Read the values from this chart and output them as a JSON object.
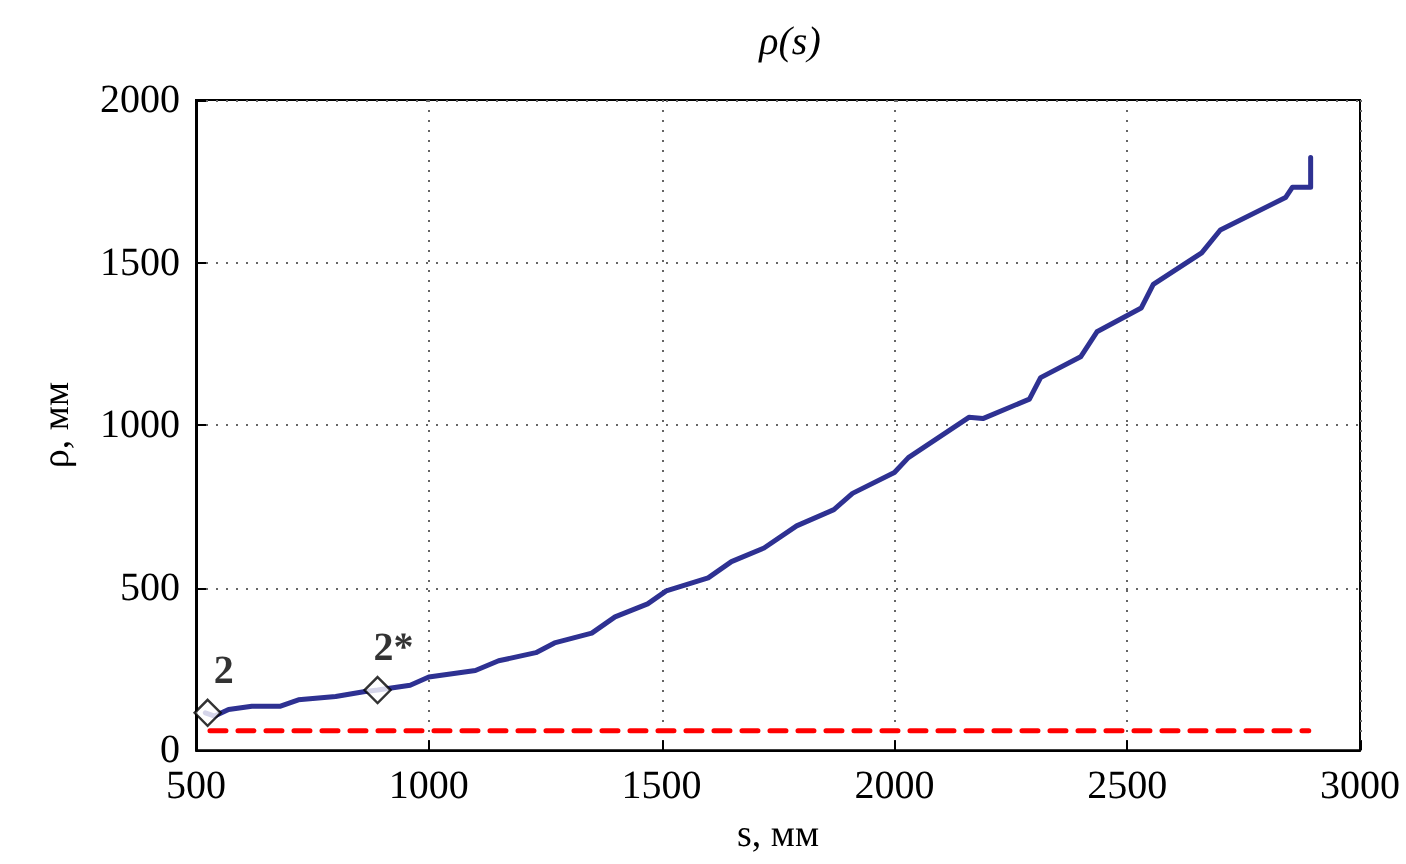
{
  "chart_data": {
    "type": "line",
    "title": "ρ(s)",
    "xlabel": "s, мм",
    "ylabel": "ρ, мм",
    "xlim": [
      500,
      3000
    ],
    "xticks": [
      500,
      1000,
      1500,
      2000,
      2500,
      3000
    ],
    "ylim": [
      0,
      2000
    ],
    "yticks": [
      0,
      500,
      1000,
      1500,
      2000
    ],
    "grid": true,
    "marker": "none",
    "series": [
      {
        "color": "#2e3192",
        "line_style": "solid",
        "x": [
          520,
          540,
          570,
          620,
          680,
          720,
          800,
          860,
          890,
          960,
          1000,
          1100,
          1150,
          1230,
          1270,
          1350,
          1400,
          1470,
          1510,
          1600,
          1650,
          1720,
          1790,
          1870,
          1910,
          2000,
          2030,
          2160,
          2190,
          2290,
          2314,
          2400,
          2435,
          2530,
          2556,
          2660,
          2700,
          2840,
          2855,
          2894,
          2894
        ],
        "values": [
          115,
          105,
          125,
          135,
          135,
          155,
          165,
          180,
          185,
          200,
          225,
          245,
          275,
          300,
          330,
          360,
          410,
          450,
          490,
          530,
          580,
          622,
          690,
          740,
          790,
          854,
          900,
          1024,
          1020,
          1080,
          1146,
          1210,
          1287,
          1360,
          1433,
          1530,
          1600,
          1700,
          1732,
          1732,
          1823
        ]
      },
      {
        "color": "#ff0000",
        "line_style": "dashed",
        "x": [
          530,
          2890
        ],
        "values": [
          60,
          60
        ]
      },
      {
        "type": "scatter",
        "color": "#000000",
        "marker": "diamond",
        "x": [
          525,
          890
        ],
        "values": [
          115,
          185
        ]
      }
    ],
    "annotations": [
      {
        "text": "2",
        "x": 525,
        "y": 115
      },
      {
        "text": "2*",
        "x": 890,
        "y": 185
      }
    ]
  }
}
